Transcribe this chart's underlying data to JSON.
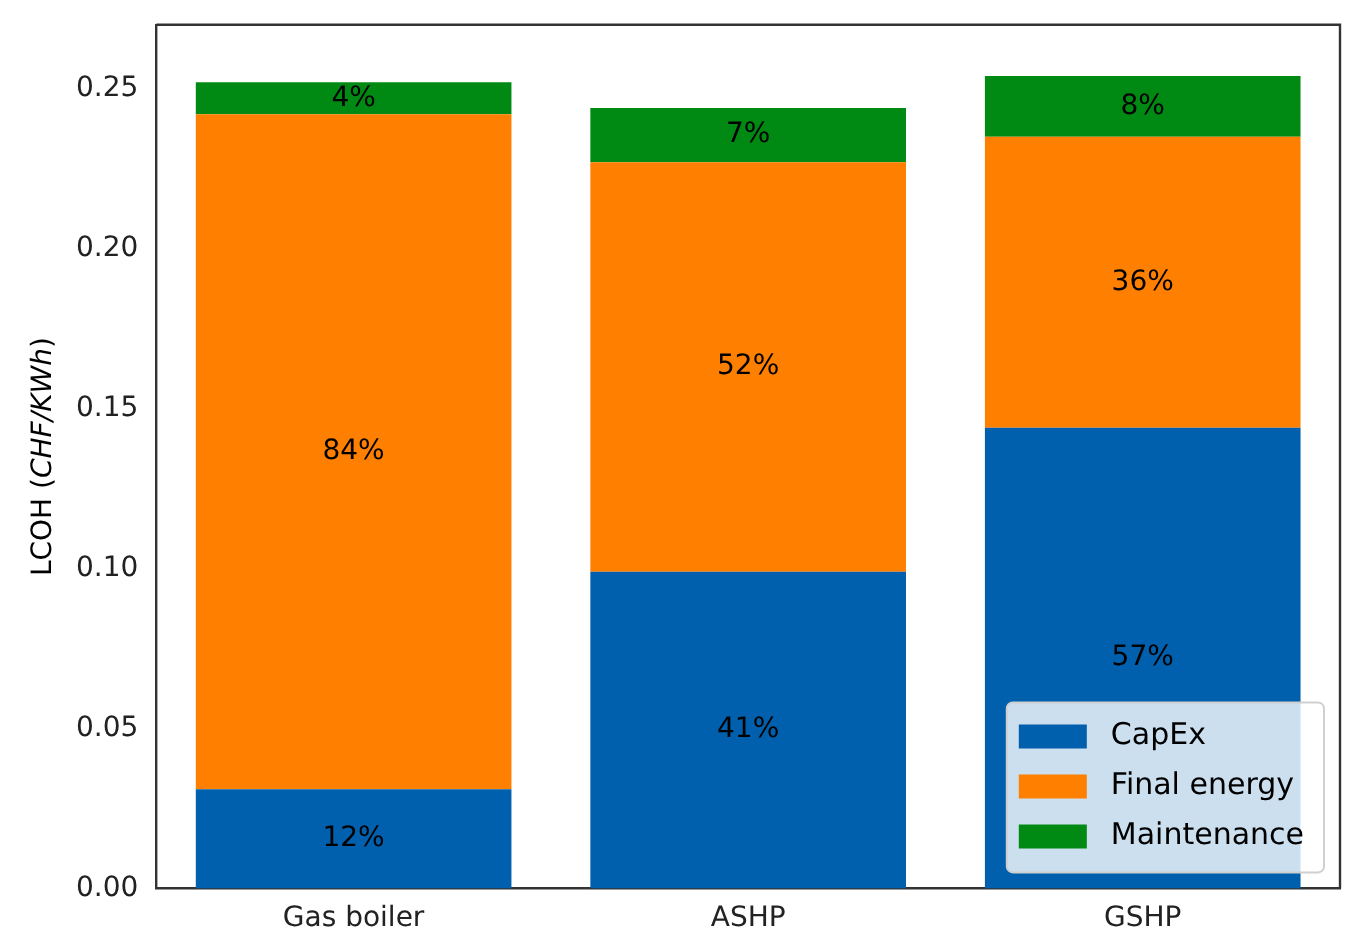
{
  "chart_data": {
    "type": "bar",
    "stacked": true,
    "ylabel": "LCOH (CHF/KWh)",
    "categories": [
      "Gas boiler",
      "ASHP",
      "GSHP"
    ],
    "series": [
      {
        "name": "CapEx",
        "color": "#0060ad",
        "values": [
          0.031,
          0.099,
          0.144
        ]
      },
      {
        "name": "Final energy",
        "color": "#ff7f00",
        "values": [
          0.211,
          0.128,
          0.091
        ]
      },
      {
        "name": "Maintenance",
        "color": "#008a13",
        "values": [
          0.01,
          0.017,
          0.019
        ]
      }
    ],
    "annotations": [
      "12%",
      "41%",
      "57%",
      "84%",
      "52%",
      "36%",
      "4%",
      "7%",
      "8%"
    ],
    "ylim": [
      0,
      0.27
    ],
    "yticks": [
      {
        "value": 0,
        "label": "0.00"
      },
      {
        "value": 0.05,
        "label": "0.05"
      },
      {
        "value": 0.1,
        "label": "0.10"
      },
      {
        "value": 0.15,
        "label": "0.15"
      },
      {
        "value": 0.2,
        "label": "0.20"
      },
      {
        "value": 0.25,
        "label": "0.25"
      }
    ],
    "legend": "bottom right",
    "grid": false
  }
}
